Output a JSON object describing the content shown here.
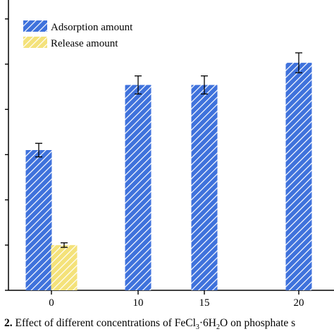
{
  "chart_data": {
    "type": "bar",
    "categories": [
      "0",
      "10",
      "15",
      "20"
    ],
    "series": [
      {
        "name": "Adsorption amount",
        "color": "#3f72dc",
        "pattern": "diagonal-hatch",
        "values": [
          3.1,
          4.54,
          4.54,
          5.03
        ],
        "errors": [
          0.15,
          0.2,
          0.2,
          0.22
        ]
      },
      {
        "name": "Release amount",
        "color": "#f4e27a",
        "pattern": "diagonal-hatch",
        "values": [
          1.0,
          null,
          null,
          null
        ],
        "errors": [
          0.05,
          null,
          null,
          null
        ]
      }
    ],
    "ylim": [
      0,
      6.2
    ],
    "legend_position": "top-left",
    "grid": false
  },
  "caption": {
    "prefix": "2.",
    "text_before_formula": "Effect of different concentrations of FeCl",
    "sub1": "3",
    "middle": "·6H",
    "sub2": "2",
    "text_after_formula": "O on phosphate s"
  }
}
